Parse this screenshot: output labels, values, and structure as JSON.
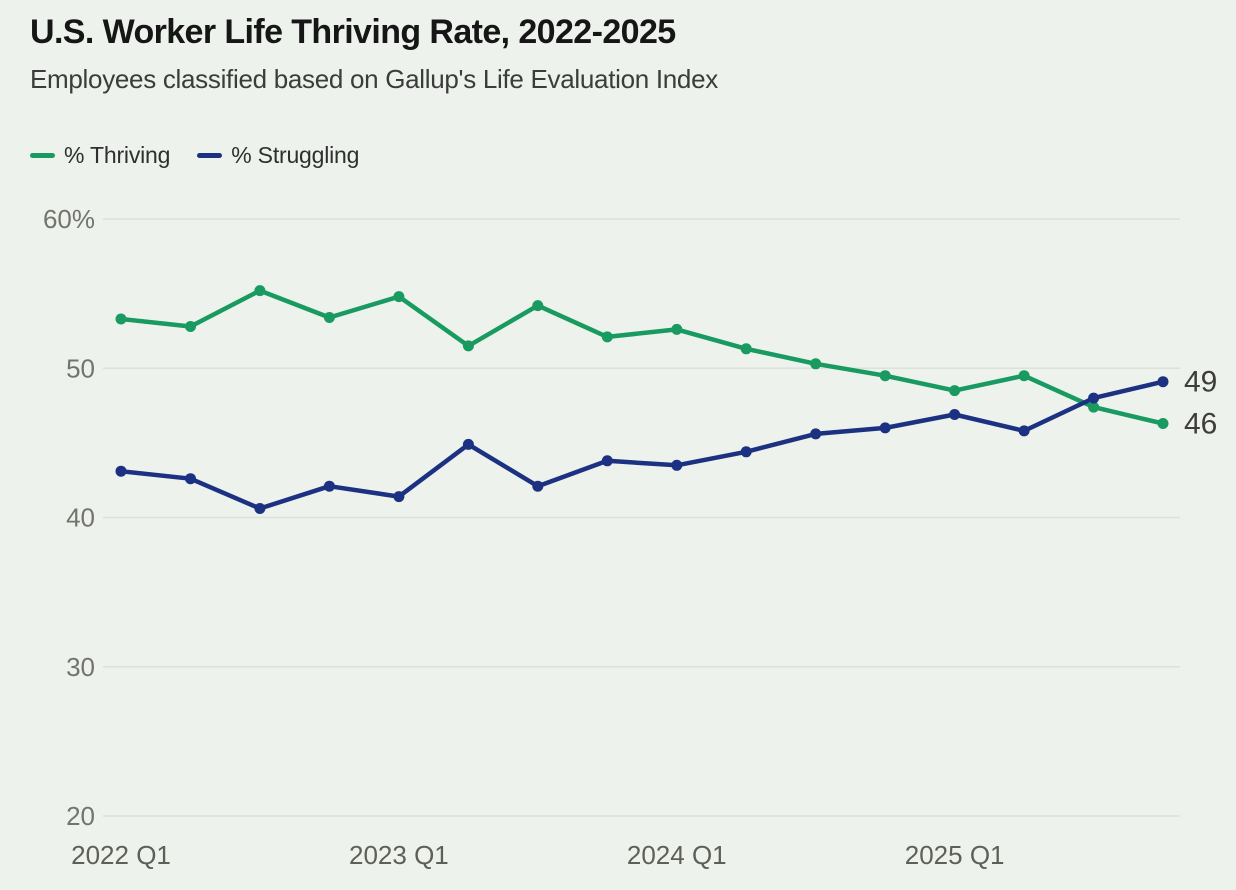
{
  "header": {
    "title": "U.S. Worker Life Thriving Rate, 2022-2025",
    "subtitle": "Employees classified based on Gallup's Life Evaluation Index"
  },
  "legend": {
    "items": [
      {
        "label": "% Thriving",
        "color": "#189a60"
      },
      {
        "label": "% Struggling",
        "color": "#1d3183"
      }
    ]
  },
  "colors": {
    "background": "#edf2ec",
    "gridline": "#dce1da",
    "thriving_green": "#189a60",
    "struggling_navy": "#1d3183",
    "axis_text": "#5e6057",
    "end_label_text": "#3e3e39"
  },
  "chart_data": {
    "type": "line",
    "title": "U.S. Worker Life Thriving Rate, 2022-2025",
    "subtitle": "Employees classified based on Gallup's Life Evaluation Index",
    "xlabel": "",
    "ylabel": "",
    "ylim": [
      20,
      60
    ],
    "grid": "horizontal",
    "legend_position": "top-left",
    "categories": [
      "2022 Q1",
      "2022 Q2",
      "2022 Q3",
      "2022 Q4",
      "2023 Q1",
      "2023 Q2",
      "2023 Q3",
      "2023 Q4",
      "2024 Q1",
      "2024 Q2",
      "2024 Q3",
      "2024 Q4",
      "2025 Q1",
      "2025 Q2",
      "2025 Q3",
      "2025 Q4"
    ],
    "x_tick_labels": [
      "2022 Q1",
      "2023 Q1",
      "2024 Q1",
      "2025 Q1"
    ],
    "x_tick_category_indexes": [
      0,
      4,
      8,
      12
    ],
    "y_ticks": [
      60,
      50,
      40,
      30,
      20
    ],
    "y_tick_labels": [
      "60%",
      "50",
      "40",
      "30",
      "20"
    ],
    "series": [
      {
        "key": "thriving",
        "name": "% Thriving",
        "color": "#189a60",
        "end_label": "46",
        "values": [
          53.3,
          52.8,
          55.2,
          53.4,
          54.8,
          51.5,
          54.2,
          52.1,
          52.6,
          51.3,
          50.3,
          49.5,
          48.5,
          49.5,
          47.4,
          46.3
        ]
      },
      {
        "key": "struggling",
        "name": "% Struggling",
        "color": "#1d3183",
        "end_label": "49",
        "values": [
          43.1,
          42.6,
          40.6,
          42.1,
          41.4,
          44.9,
          42.1,
          43.8,
          43.5,
          44.4,
          45.6,
          46.0,
          46.9,
          45.8,
          48.0,
          49.1
        ]
      }
    ]
  }
}
